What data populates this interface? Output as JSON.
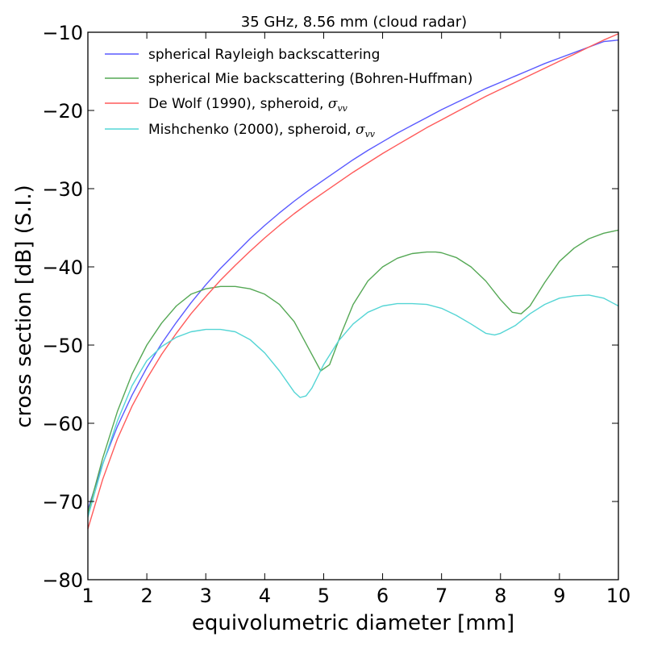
{
  "chart_data": {
    "type": "line",
    "title": "35 GHz, 8.56 mm (cloud radar)",
    "xlabel": "equivolumetric diameter [mm]",
    "ylabel": "cross section [dB] (S.I.)",
    "xlim": [
      1,
      10
    ],
    "ylim": [
      -80,
      -10
    ],
    "xticks": [
      "1",
      "2",
      "3",
      "4",
      "5",
      "6",
      "7",
      "8",
      "9",
      "10"
    ],
    "yticks": [
      "−80",
      "−70",
      "−60",
      "−50",
      "−40",
      "−30",
      "−20",
      "−10"
    ],
    "grid": false,
    "legend_position": "top-left",
    "series": [
      {
        "name": "spherical Rayleigh backscattering",
        "color": "#5a5aff",
        "x": [
          1.0,
          1.25,
          1.5,
          1.75,
          2.0,
          2.25,
          2.5,
          2.75,
          3.0,
          3.25,
          3.5,
          3.75,
          4.0,
          4.25,
          4.5,
          4.75,
          5.0,
          5.25,
          5.5,
          5.75,
          6.0,
          6.25,
          6.5,
          6.75,
          7.0,
          7.25,
          7.5,
          7.75,
          8.0,
          8.25,
          8.5,
          8.75,
          9.0,
          9.25,
          9.5,
          9.75,
          10.0
        ],
        "y": [
          -71.0,
          -65.2,
          -60.4,
          -56.4,
          -52.9,
          -49.8,
          -47.1,
          -44.6,
          -42.3,
          -40.2,
          -38.3,
          -36.4,
          -34.7,
          -33.1,
          -31.6,
          -30.2,
          -28.9,
          -27.6,
          -26.3,
          -25.1,
          -24.0,
          -22.9,
          -21.9,
          -20.9,
          -19.9,
          -19.0,
          -18.1,
          -17.2,
          -16.4,
          -15.6,
          -14.8,
          -14.0,
          -13.3,
          -12.6,
          -11.9,
          -11.2,
          -11.0
        ]
      },
      {
        "name": "spherical Mie backscattering (Bohren-Huffman)",
        "color": "#55a855",
        "x": [
          1.0,
          1.25,
          1.5,
          1.75,
          2.0,
          2.25,
          2.5,
          2.75,
          3.0,
          3.25,
          3.5,
          3.75,
          4.0,
          4.25,
          4.5,
          4.75,
          4.95,
          5.1,
          5.3,
          5.5,
          5.75,
          6.0,
          6.25,
          6.5,
          6.75,
          6.9,
          7.0,
          7.25,
          7.5,
          7.75,
          8.0,
          8.2,
          8.35,
          8.5,
          8.75,
          9.0,
          9.25,
          9.5,
          9.75,
          10.0
        ],
        "y": [
          -71.5,
          -64.5,
          -58.5,
          -53.7,
          -50.0,
          -47.2,
          -45.0,
          -43.5,
          -42.8,
          -42.5,
          -42.5,
          -42.8,
          -43.5,
          -44.8,
          -47.0,
          -50.5,
          -53.3,
          -52.5,
          -48.5,
          -44.8,
          -41.8,
          -40.0,
          -38.9,
          -38.3,
          -38.1,
          -38.1,
          -38.2,
          -38.8,
          -40.0,
          -41.8,
          -44.2,
          -45.8,
          -46.0,
          -45.0,
          -42.0,
          -39.3,
          -37.6,
          -36.4,
          -35.7,
          -35.3
        ]
      },
      {
        "name": "De Wolf (1990), spheroid, σvv",
        "color": "#ff5a5a",
        "x": [
          1.0,
          1.25,
          1.5,
          1.75,
          2.0,
          2.25,
          2.5,
          2.75,
          3.0,
          3.25,
          3.5,
          3.75,
          4.0,
          4.25,
          4.5,
          4.75,
          5.0,
          5.25,
          5.5,
          5.75,
          6.0,
          6.25,
          6.5,
          6.75,
          7.0,
          7.25,
          7.5,
          7.75,
          8.0,
          8.25,
          8.5,
          8.75,
          9.0,
          9.25,
          9.5,
          9.75,
          10.0
        ],
        "y": [
          -73.5,
          -67.2,
          -62.0,
          -57.8,
          -54.3,
          -51.2,
          -48.5,
          -46.0,
          -43.8,
          -41.7,
          -39.8,
          -38.0,
          -36.3,
          -34.7,
          -33.2,
          -31.8,
          -30.5,
          -29.2,
          -27.9,
          -26.7,
          -25.5,
          -24.4,
          -23.3,
          -22.2,
          -21.2,
          -20.2,
          -19.2,
          -18.2,
          -17.3,
          -16.4,
          -15.5,
          -14.6,
          -13.7,
          -12.8,
          -11.9,
          -11.0,
          -10.2
        ]
      },
      {
        "name": "Mishchenko (2000), spheroid, σvv",
        "color": "#55d5d5",
        "x": [
          1.0,
          1.25,
          1.5,
          1.75,
          2.0,
          2.25,
          2.5,
          2.75,
          3.0,
          3.25,
          3.5,
          3.75,
          4.0,
          4.25,
          4.5,
          4.6,
          4.7,
          4.8,
          5.0,
          5.25,
          5.5,
          5.75,
          6.0,
          6.25,
          6.5,
          6.75,
          7.0,
          7.25,
          7.5,
          7.75,
          7.9,
          8.0,
          8.25,
          8.5,
          8.75,
          9.0,
          9.25,
          9.5,
          9.75,
          10.0
        ],
        "y": [
          -72.0,
          -65.3,
          -59.7,
          -55.2,
          -52.0,
          -50.2,
          -49.0,
          -48.3,
          -48.0,
          -48.0,
          -48.3,
          -49.3,
          -51.0,
          -53.3,
          -56.0,
          -56.7,
          -56.5,
          -55.5,
          -52.5,
          -49.5,
          -47.3,
          -45.8,
          -45.0,
          -44.7,
          -44.7,
          -44.8,
          -45.3,
          -46.2,
          -47.3,
          -48.5,
          -48.7,
          -48.5,
          -47.5,
          -46.0,
          -44.8,
          -44.0,
          -43.7,
          -43.6,
          -44.0,
          -45.0
        ]
      }
    ]
  }
}
